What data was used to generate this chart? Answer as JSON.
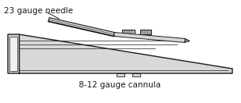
{
  "bg_color": "#ffffff",
  "line_color": "#1a1a1a",
  "fill_light": "#d8d8d8",
  "fill_mid": "#b0b0b0",
  "fill_dark": "#888888",
  "fill_white": "#f0f0f0",
  "label_needle": "23 gauge needle",
  "label_cannula": "8-12 gauge cannula",
  "label_fontsize": 7.5,
  "figsize": [
    3.06,
    1.32
  ],
  "dpi": 100,
  "lw_main": 1.0,
  "lw_thin": 0.5
}
